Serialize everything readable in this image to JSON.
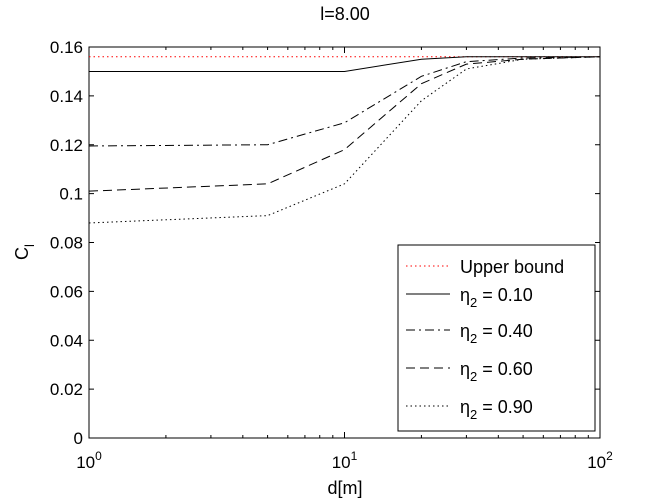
{
  "chart_data": {
    "type": "line",
    "title": "l=8.00",
    "xlabel": "d[m]",
    "ylabel": "C",
    "ylabel_sub": "l",
    "xscale": "log",
    "xlim": [
      1,
      100
    ],
    "ylim": [
      0,
      0.16
    ],
    "yticks": [
      "0",
      "0.02",
      "0.04",
      "0.06",
      "0.08",
      "0.1",
      "0.12",
      "0.14",
      "0.16"
    ],
    "xticks": [
      {
        "base": "10",
        "exp": "0"
      },
      {
        "base": "10",
        "exp": "1"
      },
      {
        "base": "10",
        "exp": "2"
      }
    ],
    "grid": false,
    "legend_position": "bottom-right",
    "series": [
      {
        "name": "Upper bound",
        "style": "dotted",
        "color": "#ff0000",
        "points": [
          [
            1,
            0.156
          ],
          [
            100,
            0.156
          ]
        ]
      },
      {
        "name": "η2 = 0.10",
        "legend": {
          "symbol": "η",
          "sub": "2",
          "rest": " = 0.10"
        },
        "style": "solid",
        "color": "#000000",
        "points": [
          [
            1,
            0.15
          ],
          [
            5,
            0.15
          ],
          [
            10,
            0.15
          ],
          [
            20,
            0.155
          ],
          [
            30,
            0.156
          ],
          [
            50,
            0.156
          ],
          [
            100,
            0.156
          ]
        ]
      },
      {
        "name": "η2 = 0.40",
        "legend": {
          "symbol": "η",
          "sub": "2",
          "rest": " = 0.40"
        },
        "style": "dashdot",
        "color": "#000000",
        "points": [
          [
            1,
            0.1195
          ],
          [
            5,
            0.12
          ],
          [
            10,
            0.129
          ],
          [
            20,
            0.148
          ],
          [
            30,
            0.154
          ],
          [
            50,
            0.1555
          ],
          [
            100,
            0.156
          ]
        ]
      },
      {
        "name": "η2 = 0.60",
        "legend": {
          "symbol": "η",
          "sub": "2",
          "rest": " = 0.60"
        },
        "style": "dashed",
        "color": "#000000",
        "points": [
          [
            1,
            0.101
          ],
          [
            5,
            0.104
          ],
          [
            10,
            0.118
          ],
          [
            20,
            0.145
          ],
          [
            30,
            0.153
          ],
          [
            50,
            0.155
          ],
          [
            100,
            0.156
          ]
        ]
      },
      {
        "name": "η2 = 0.90",
        "legend": {
          "symbol": "η",
          "sub": "2",
          "rest": " = 0.90"
        },
        "style": "dotted",
        "color": "#000000",
        "points": [
          [
            1,
            0.088
          ],
          [
            5,
            0.091
          ],
          [
            10,
            0.104
          ],
          [
            20,
            0.138
          ],
          [
            30,
            0.151
          ],
          [
            50,
            0.155
          ],
          [
            100,
            0.156
          ]
        ]
      }
    ]
  }
}
